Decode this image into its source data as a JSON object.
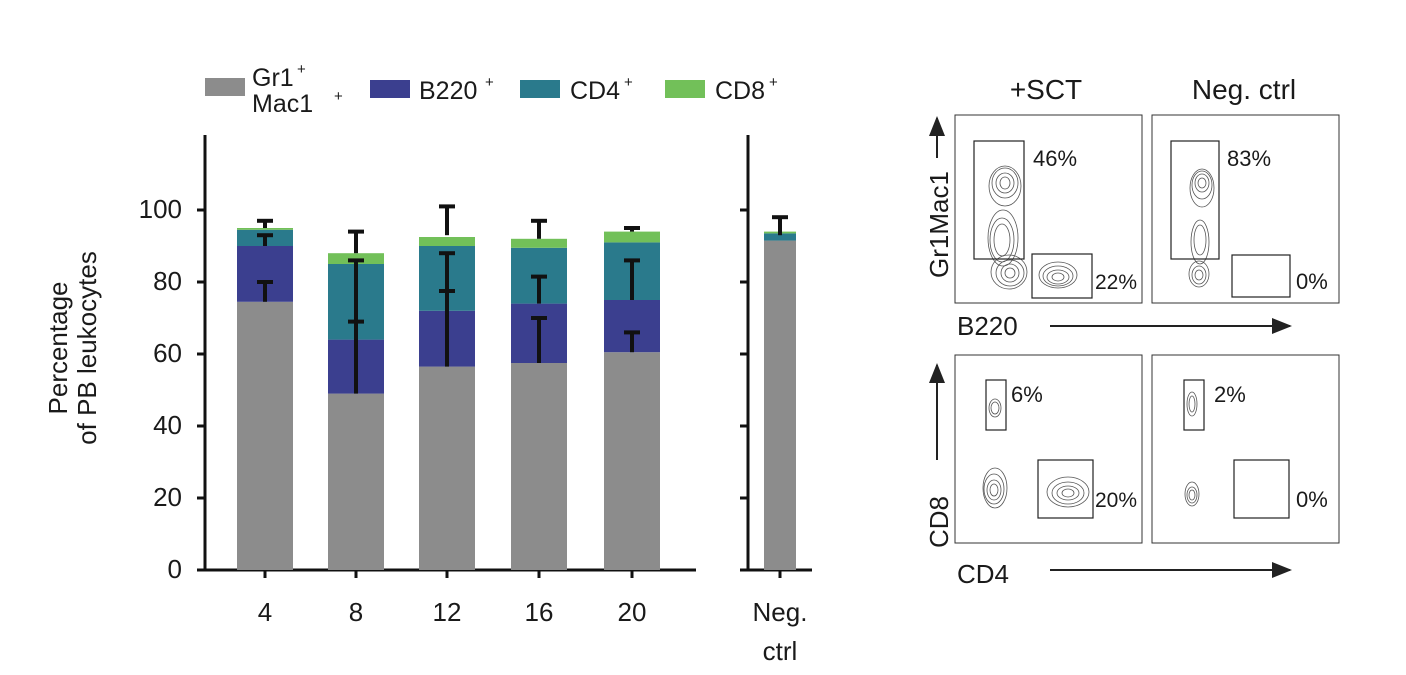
{
  "legend": [
    {
      "label": "Gr1",
      "sup": "+",
      "label2": "Mac1",
      "sup2": "+",
      "color": "#8c8c8c"
    },
    {
      "label": "B220",
      "sup": "+",
      "color": "#3b3f8f"
    },
    {
      "label": "CD4",
      "sup": "+",
      "color": "#2a7a8c"
    },
    {
      "label": "CD8",
      "sup": "+",
      "color": "#72c059"
    }
  ],
  "chart_data": {
    "type": "bar",
    "stacked": true,
    "ylabel_line1": "Percentage",
    "ylabel_line2": "of PB leukocytes",
    "ylim": [
      0,
      120
    ],
    "yticks": [
      "0",
      "20",
      "40",
      "60",
      "80",
      "100"
    ],
    "categories": [
      "4",
      "8",
      "12",
      "16",
      "20"
    ],
    "ctrl_category_line1": "Neg.",
    "ctrl_category_line2": "ctrl",
    "series": [
      {
        "name": "Gr1+Mac1+",
        "color": "#8c8c8c",
        "values": [
          74.5,
          49,
          56.5,
          57.5,
          60.5
        ],
        "ctrl": 91.5
      },
      {
        "name": "B220+",
        "color": "#3b3f8f",
        "values": [
          15.5,
          15,
          15.5,
          16.5,
          14.5
        ],
        "ctrl": 0
      },
      {
        "name": "CD4+",
        "color": "#2a7a8c",
        "values": [
          4.5,
          21,
          18,
          15.5,
          16
        ],
        "ctrl": 2
      },
      {
        "name": "CD8+",
        "color": "#72c059",
        "values": [
          0.5,
          3,
          2.5,
          2.5,
          3
        ],
        "ctrl": 0.5
      }
    ],
    "errors": [
      {
        "series": "Gr1+Mac1+",
        "upper": [
          80,
          69,
          77.5,
          70,
          66
        ],
        "lower": [
          74.5,
          49,
          56.5,
          57.5,
          60.5
        ],
        "ctrl_upper": 98,
        "ctrl_lower": 93
      },
      {
        "series": "B220+",
        "upper": [
          93,
          86,
          88,
          81.5,
          86
        ],
        "lower": [
          90,
          64,
          72,
          74,
          75
        ]
      },
      {
        "series": "CD8+",
        "upper": [
          97,
          94,
          101,
          97,
          95
        ],
        "lower": [
          95,
          88,
          93,
          92,
          94
        ]
      }
    ]
  },
  "flow": {
    "col_headers": [
      "+SCT",
      "Neg. ctrl"
    ],
    "rows": [
      {
        "yaxis": "Gr1Mac1",
        "xaxis": "B220",
        "top_pcts": [
          "46%",
          "83%"
        ],
        "bottom_pcts": [
          "22%",
          "0%"
        ]
      },
      {
        "yaxis": "CD8",
        "xaxis": "CD4",
        "top_pcts": [
          "6%",
          "2%"
        ],
        "bottom_pcts": [
          "20%",
          "0%"
        ]
      }
    ]
  }
}
